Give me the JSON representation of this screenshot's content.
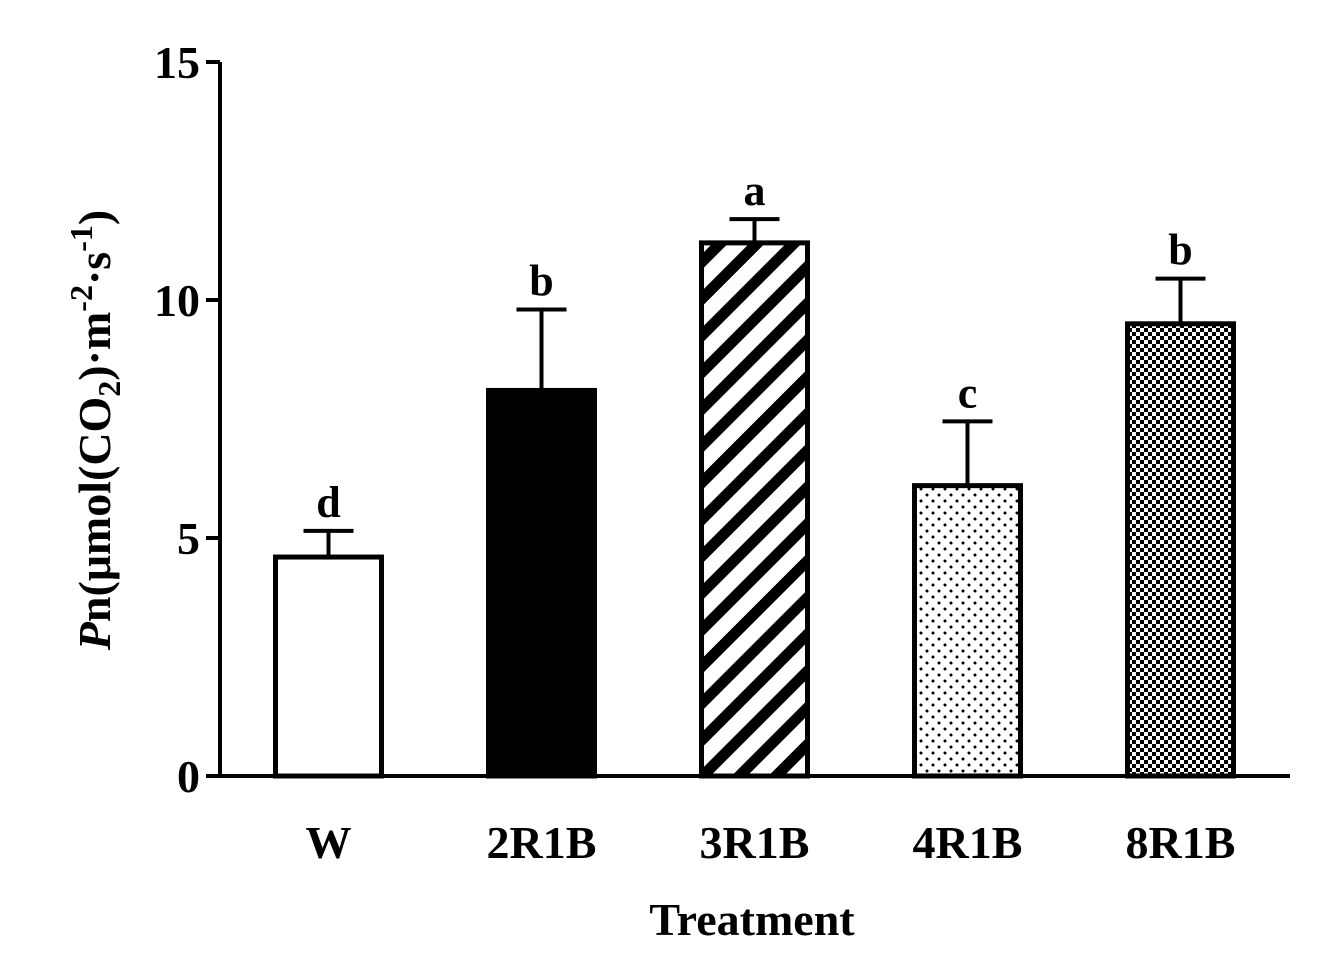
{
  "chart_data": {
    "type": "bar",
    "title": "",
    "xlabel": "Treatment",
    "ylabel": {
      "italic_part": "P",
      "prefix": "n(μmol(CO",
      "sub": "2",
      "middle": ")·m",
      "sup1": "-2",
      "dot": "·s",
      "sup2": "-1",
      "suffix": ")"
    },
    "ylim": [
      0,
      15
    ],
    "yticks": [
      0,
      5,
      10,
      15
    ],
    "ytick_labels": [
      "0",
      "5",
      "10",
      "15"
    ],
    "categories": [
      "W",
      "2R1B",
      "3R1B",
      "4R1B",
      "8R1B"
    ],
    "values": [
      4.6,
      8.1,
      11.2,
      6.1,
      9.5
    ],
    "errors": [
      0.55,
      1.7,
      0.5,
      1.35,
      0.95
    ],
    "significance": [
      "d",
      "b",
      "a",
      "c",
      "b"
    ],
    "patterns": [
      "white",
      "black",
      "diagonal-hatch",
      "sparse-dots",
      "checker"
    ],
    "colors": {
      "stroke": "#000000",
      "background": "#ffffff"
    }
  }
}
